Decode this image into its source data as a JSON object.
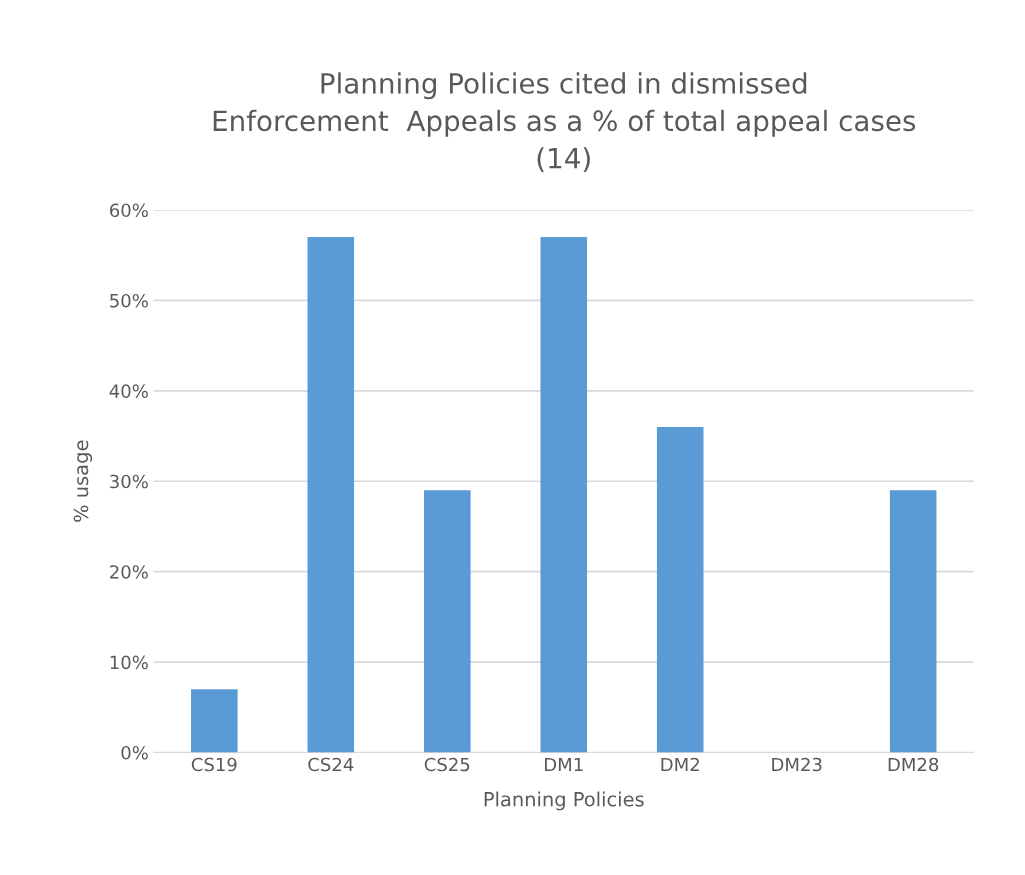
{
  "chart_data": {
    "type": "bar",
    "title": "Planning Policies cited in dismissed\nEnforcement  Appeals as a % of total appeal cases\n(14)",
    "xlabel": "Planning Policies",
    "ylabel": "% usage",
    "categories": [
      "CS19",
      "CS24",
      "CS25",
      "DM1",
      "DM2",
      "DM23",
      "DM28"
    ],
    "values": [
      7,
      57,
      29,
      57,
      36,
      0,
      29
    ],
    "color": "#5b9bd5",
    "ylim": [
      0,
      60
    ],
    "yticks": [
      {
        "value": 0,
        "label": "0%"
      },
      {
        "value": 10,
        "label": "10%"
      },
      {
        "value": 20,
        "label": "20%"
      },
      {
        "value": 30,
        "label": "30%"
      },
      {
        "value": 40,
        "label": "40%"
      },
      {
        "value": 50,
        "label": "50%"
      },
      {
        "value": 60,
        "label": "60%"
      }
    ],
    "grid": "y",
    "legend": false
  }
}
